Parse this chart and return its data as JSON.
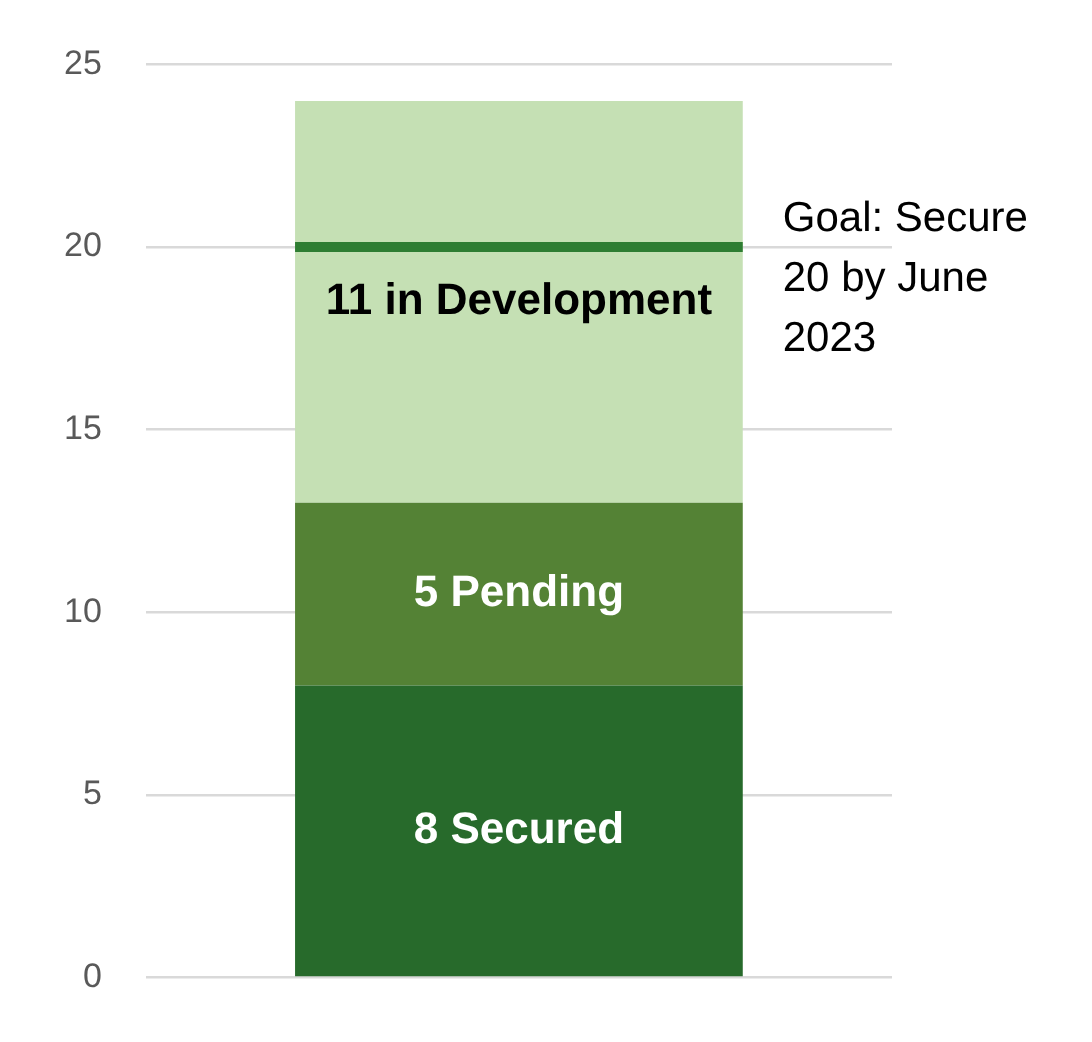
{
  "chart_data": {
    "type": "bar",
    "stacked": true,
    "categories": [
      null
    ],
    "series": [
      {
        "color": "#276a2b",
        "values": [
          8
        ],
        "value_labels": [
          "8 Secured"
        ]
      },
      {
        "color": "#548235",
        "values": [
          5
        ],
        "value_labels": [
          "5 Pending"
        ]
      },
      {
        "color": "#c5e0b4",
        "values": [
          11
        ],
        "value_labels": [
          "11 in Development"
        ]
      }
    ],
    "ylim": [
      0,
      25
    ],
    "yticks": [
      0,
      5,
      10,
      15,
      20,
      25
    ],
    "grid": "y",
    "legend": false,
    "tick_labels": "y",
    "ref_lines": [
      {
        "axis": "y",
        "value": 20,
        "label": "Goal: Secure 20 by June 2023",
        "color": "#2e7d32"
      }
    ]
  }
}
